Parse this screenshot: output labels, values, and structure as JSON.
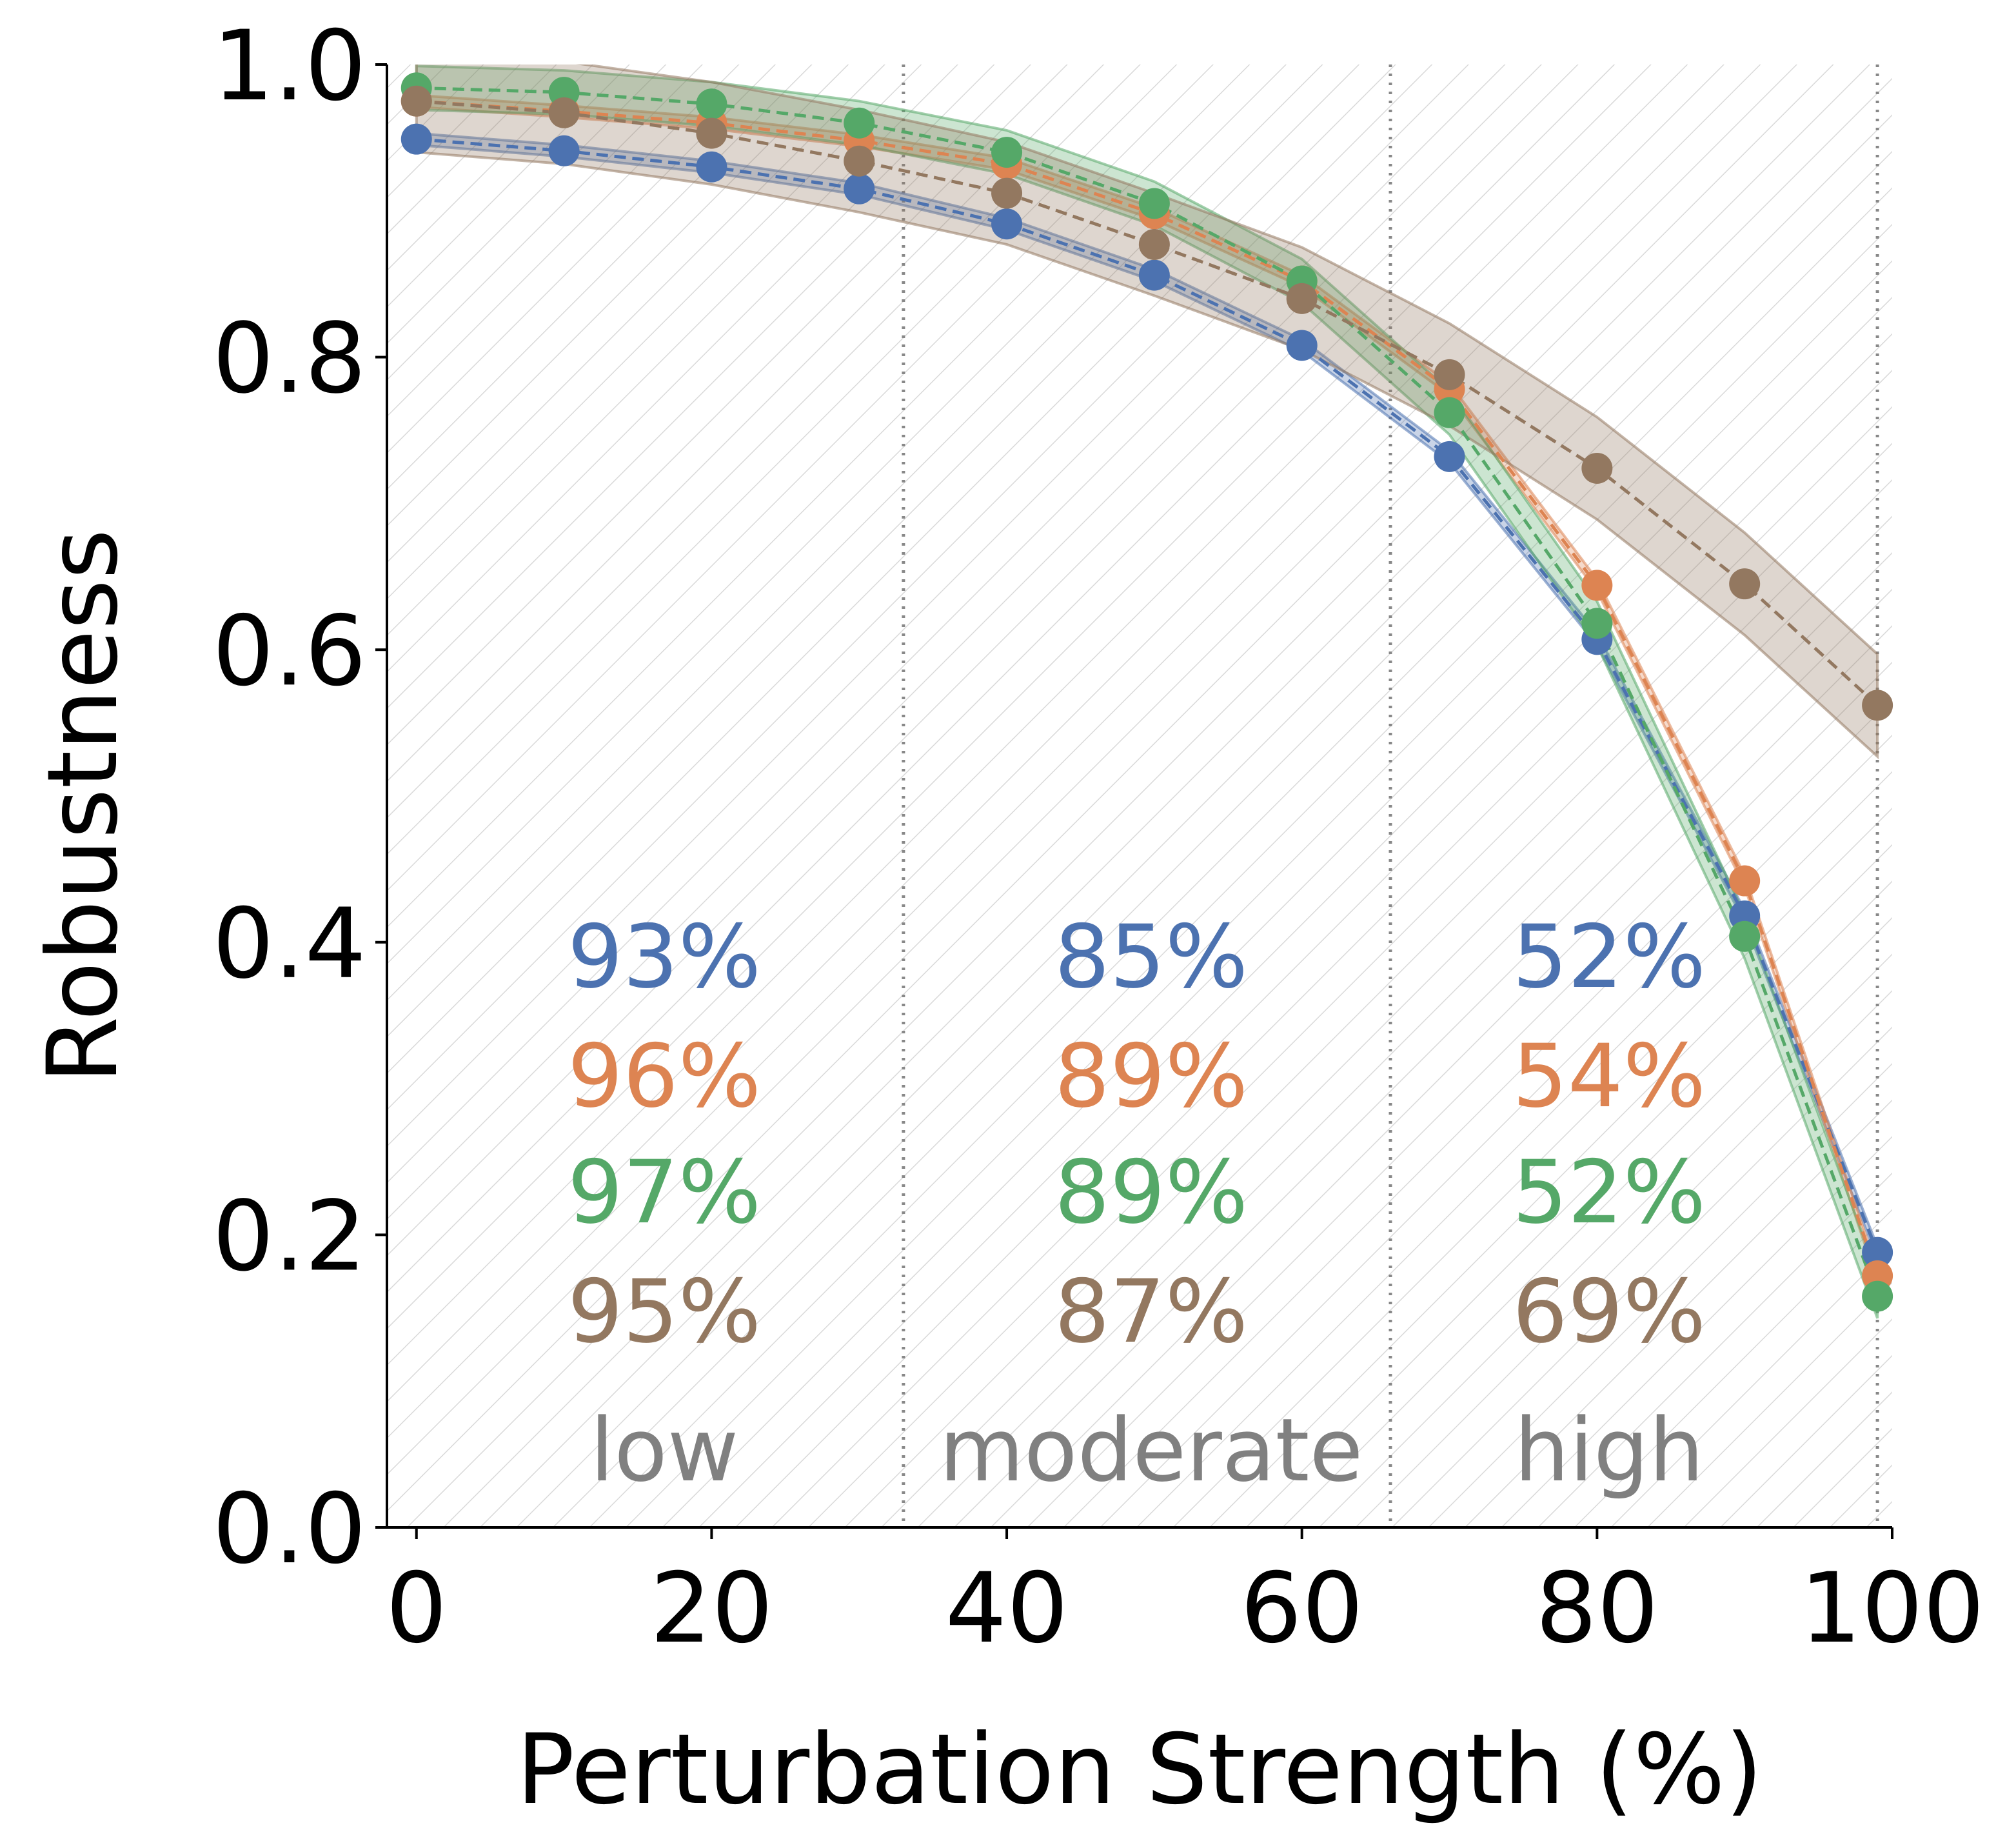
{
  "chart_data": {
    "type": "line",
    "xlabel": "Perturbation Strength (%)",
    "ylabel": "Robustness",
    "xlim": [
      -2,
      100
    ],
    "ylim": [
      0,
      1
    ],
    "xticks": [
      "0",
      "20",
      "40",
      "60",
      "80",
      "100"
    ],
    "yticks": [
      "0.0",
      "0.2",
      "0.4",
      "0.6",
      "0.8",
      "1.0"
    ],
    "grid": false,
    "background_hatch": true,
    "x": [
      0,
      10,
      20,
      30,
      40,
      50,
      60,
      70,
      80,
      90,
      99
    ],
    "series": [
      {
        "color": "#4c72b0",
        "values": [
          0.949,
          0.941,
          0.93,
          0.915,
          0.891,
          0.856,
          0.808,
          0.732,
          0.607,
          0.418,
          0.188
        ],
        "band": 0.004,
        "region_values": [
          "93%",
          "85%",
          "52%"
        ]
      },
      {
        "color": "#dd8452",
        "values": [
          0.975,
          0.968,
          0.96,
          0.948,
          0.932,
          0.898,
          0.852,
          0.778,
          0.644,
          0.442,
          0.172
        ],
        "band": 0.004,
        "region_values": [
          "96%",
          "89%",
          "54%"
        ]
      },
      {
        "color": "#55a868",
        "values": [
          0.984,
          0.981,
          0.973,
          0.96,
          0.94,
          0.905,
          0.852,
          0.762,
          0.618,
          0.404,
          0.158
        ],
        "band": 0.015,
        "region_values": [
          "97%",
          "89%",
          "52%"
        ]
      },
      {
        "color": "#937860",
        "values": [
          0.975,
          0.967,
          0.953,
          0.934,
          0.912,
          0.877,
          0.84,
          0.788,
          0.724,
          0.645,
          0.562
        ],
        "band": 0.035,
        "region_values": [
          "95%",
          "87%",
          "69%"
        ]
      }
    ],
    "regions": [
      {
        "label": "low"
      },
      {
        "label": "moderate"
      },
      {
        "label": "high"
      }
    ],
    "region_boundaries": [
      33,
      66,
      99
    ]
  }
}
